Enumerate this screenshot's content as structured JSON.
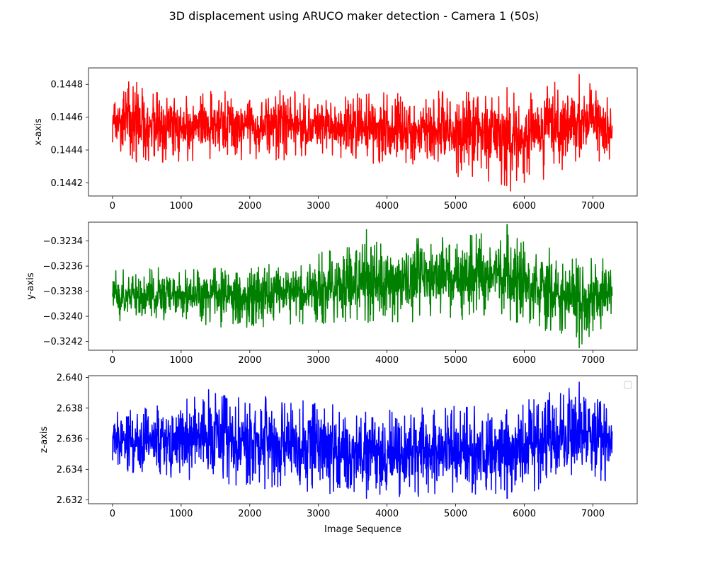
{
  "figure": {
    "title": "3D displacement using ARUCO maker detection - Camera 1 (50s)"
  },
  "chart_data": [
    {
      "type": "line",
      "title": "",
      "xlabel": "",
      "ylabel": "x-axis",
      "color": "#ff0000",
      "xlim": [
        -350,
        7645
      ],
      "ylim": [
        0.14412,
        0.1449
      ],
      "xticks": [
        0,
        1000,
        2000,
        3000,
        4000,
        5000,
        6000,
        7000
      ],
      "xtick_labels": [
        "0",
        "1000",
        "2000",
        "3000",
        "4000",
        "5000",
        "6000",
        "7000"
      ],
      "yticks": [
        0.1442,
        0.1444,
        0.1446,
        0.1448
      ],
      "ytick_labels": [
        "0.1442",
        "0.1444",
        "0.1446",
        "0.1448"
      ],
      "x_range": [
        0,
        7280
      ],
      "center": 0.14458,
      "noise_amplitude": 0.00016,
      "envelope": [
        {
          "x": 0,
          "upper": 0.144683,
          "lower": 0.144443
        },
        {
          "x": 250,
          "upper": 0.14483,
          "lower": 0.14432
        },
        {
          "x": 700,
          "upper": 0.14475,
          "lower": 0.14432
        },
        {
          "x": 1700,
          "upper": 0.14476,
          "lower": 0.14434
        },
        {
          "x": 2300,
          "upper": 0.14478,
          "lower": 0.14433
        },
        {
          "x": 3000,
          "upper": 0.14474,
          "lower": 0.14436
        },
        {
          "x": 5500,
          "upper": 0.14477,
          "lower": 0.14421
        },
        {
          "x": 5800,
          "upper": 0.14479,
          "lower": 0.14415
        },
        {
          "x": 6800,
          "upper": 0.14486,
          "lower": 0.1443
        },
        {
          "x": 7280,
          "upper": 0.14472,
          "lower": 0.14433
        }
      ],
      "noted_extremes": [
        {
          "x": 6800,
          "y": 0.14486
        },
        {
          "x": 5800,
          "y": 0.14415
        },
        {
          "x": 5480,
          "y": 0.14421
        }
      ],
      "grid": false
    },
    {
      "type": "line",
      "title": "",
      "xlabel": "",
      "ylabel": "y-axis",
      "color": "#008000",
      "xlim": [
        -350,
        7645
      ],
      "ylim": [
        -0.32427,
        -0.32325
      ],
      "xticks": [
        0,
        1000,
        2000,
        3000,
        4000,
        5000,
        6000,
        7000
      ],
      "xtick_labels": [
        "0",
        "1000",
        "2000",
        "3000",
        "4000",
        "5000",
        "6000",
        "7000"
      ],
      "yticks": [
        -0.3242,
        -0.324,
        -0.3238,
        -0.3236,
        -0.3234
      ],
      "ytick_labels": [
        "−0.3242",
        "−0.3240",
        "−0.3238",
        "−0.3236",
        "−0.3234"
      ],
      "x_range": [
        0,
        7280
      ],
      "center": -0.32382,
      "noise_amplitude": 0.0002,
      "envelope": [
        {
          "x": 0,
          "upper": -0.32362,
          "lower": -0.32405
        },
        {
          "x": 1000,
          "upper": -0.3236,
          "lower": -0.32408
        },
        {
          "x": 2000,
          "upper": -0.32362,
          "lower": -0.32409
        },
        {
          "x": 3700,
          "upper": -0.3234,
          "lower": -0.32406
        },
        {
          "x": 5700,
          "upper": -0.32331,
          "lower": -0.32402
        },
        {
          "x": 6800,
          "upper": -0.32355,
          "lower": -0.32425
        },
        {
          "x": 7280,
          "upper": -0.32352,
          "lower": -0.32406
        }
      ],
      "noted_extremes": [
        {
          "x": 5750,
          "y": -0.32327
        },
        {
          "x": 3700,
          "y": -0.32331
        },
        {
          "x": 6800,
          "y": -0.32425
        }
      ],
      "grid": false
    },
    {
      "type": "line",
      "title": "",
      "xlabel": "Image Sequence",
      "ylabel": "z-axis",
      "color": "#0000ff",
      "xlim": [
        -350,
        7645
      ],
      "ylim": [
        2.63175,
        2.64012
      ],
      "xticks": [
        0,
        1000,
        2000,
        3000,
        4000,
        5000,
        6000,
        7000
      ],
      "xtick_labels": [
        "0",
        "1000",
        "2000",
        "3000",
        "4000",
        "5000",
        "6000",
        "7000"
      ],
      "yticks": [
        2.632,
        2.634,
        2.636,
        2.638,
        2.64
      ],
      "ytick_labels": [
        "2.632",
        "2.634",
        "2.636",
        "2.638",
        "2.640"
      ],
      "x_range": [
        0,
        7280
      ],
      "center": 2.63592,
      "noise_amplitude": 0.0017,
      "envelope": [
        {
          "x": 0,
          "upper": 2.6377,
          "lower": 2.634
        },
        {
          "x": 1400,
          "upper": 2.6392,
          "lower": 2.633
        },
        {
          "x": 3700,
          "upper": 2.638,
          "lower": 2.6322
        },
        {
          "x": 5750,
          "upper": 2.6382,
          "lower": 2.6322
        },
        {
          "x": 6800,
          "upper": 2.6397,
          "lower": 2.6331
        },
        {
          "x": 7280,
          "upper": 2.6378,
          "lower": 2.6332
        }
      ],
      "noted_extremes": [
        {
          "x": 6800,
          "y": 2.6397
        },
        {
          "x": 1400,
          "y": 2.6392
        },
        {
          "x": 3700,
          "y": 2.6321
        },
        {
          "x": 5750,
          "y": 2.6321
        }
      ],
      "legend": {
        "placement": "upper right",
        "entries": []
      },
      "grid": false
    }
  ]
}
